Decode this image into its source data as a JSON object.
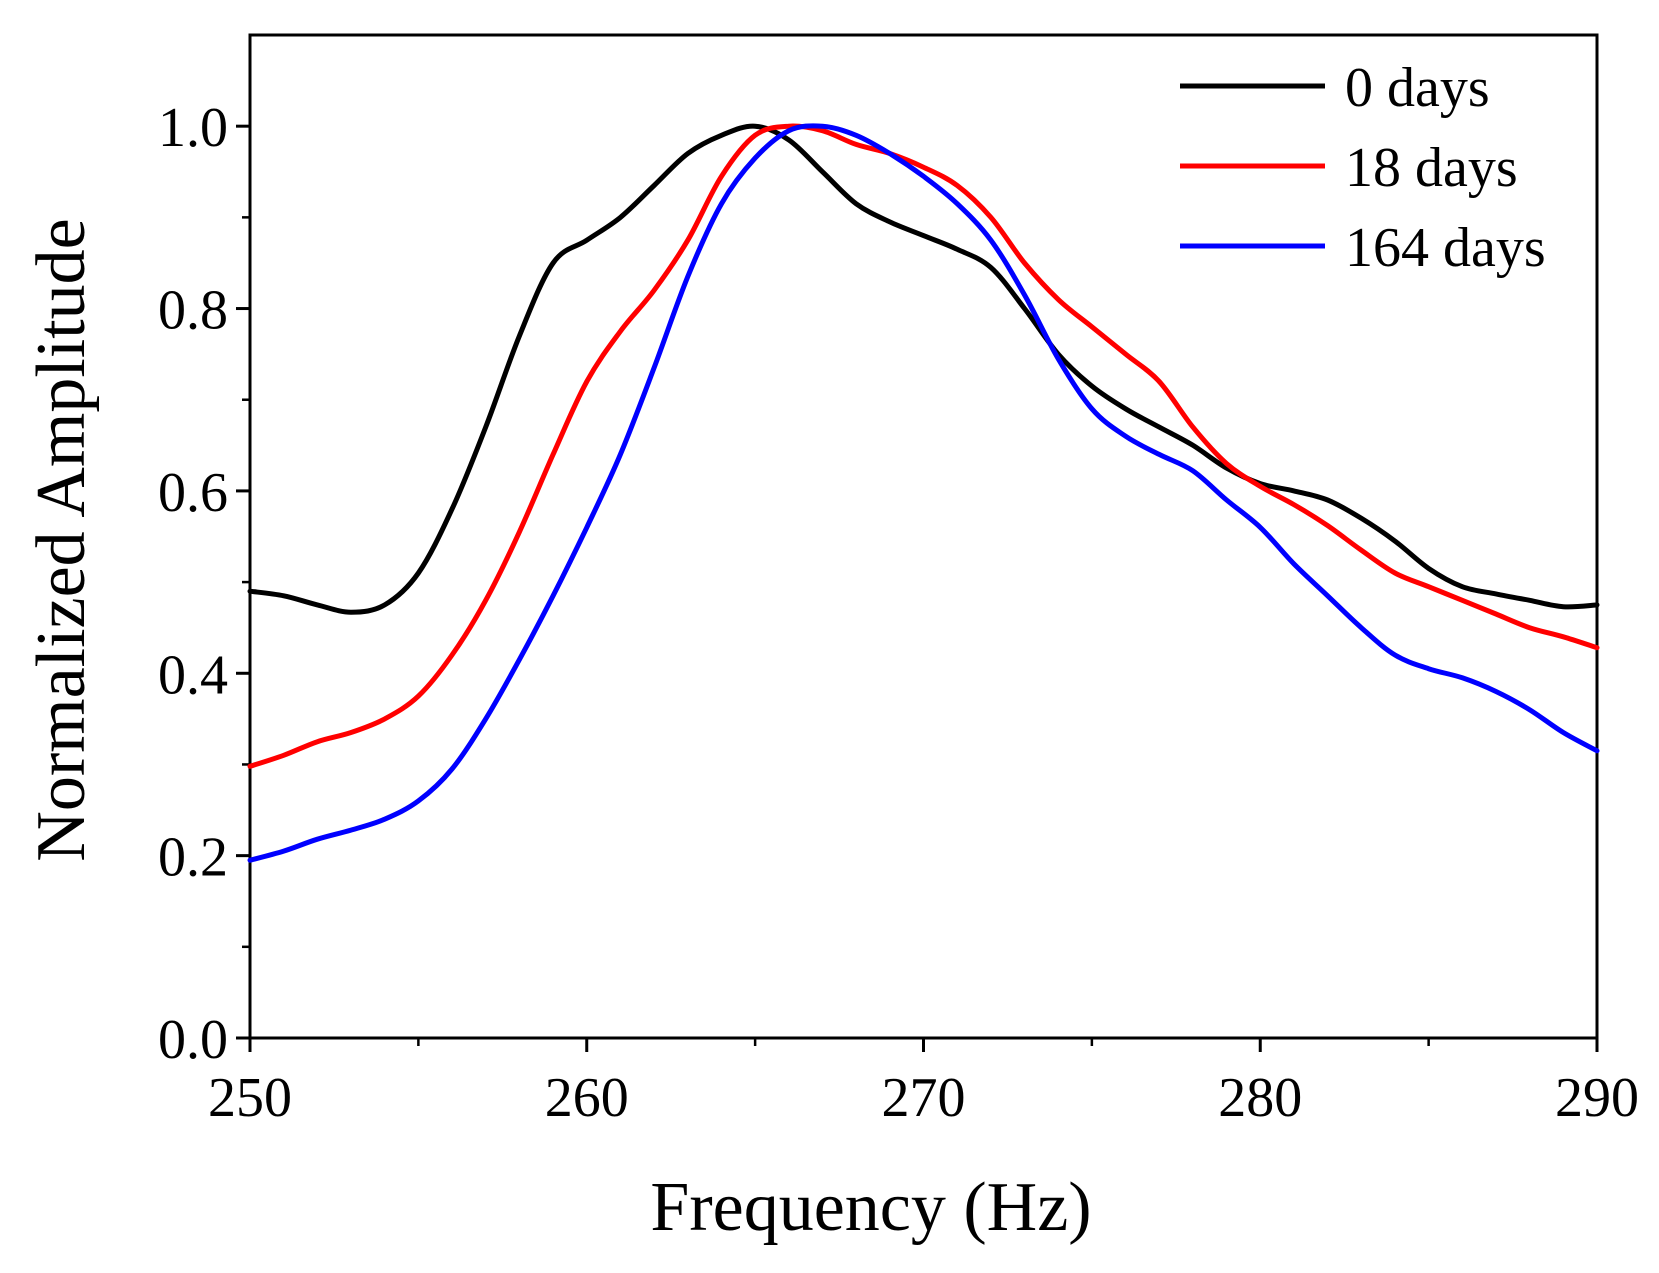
{
  "chart_data": {
    "type": "line",
    "title": "",
    "xlabel": "Frequency (Hz)",
    "ylabel": "Normalized Amplitude",
    "xlim": [
      250,
      290
    ],
    "ylim": [
      0.0,
      1.1
    ],
    "x_ticks": [
      250,
      260,
      270,
      280,
      290
    ],
    "x_tick_labels": [
      "250",
      "260",
      "270",
      "280",
      "290"
    ],
    "y_ticks": [
      0.0,
      0.2,
      0.4,
      0.6,
      0.8,
      1.0
    ],
    "y_tick_labels": [
      "0.0",
      "0.2",
      "0.4",
      "0.6",
      "0.8",
      "1.0"
    ],
    "grid": false,
    "legend_position": "top-right",
    "series": [
      {
        "name": "0 days",
        "color": "#000000",
        "points": [
          [
            250,
            0.49
          ],
          [
            251,
            0.485
          ],
          [
            252,
            0.475
          ],
          [
            253,
            0.467
          ],
          [
            254,
            0.475
          ],
          [
            255,
            0.51
          ],
          [
            256,
            0.58
          ],
          [
            257,
            0.67
          ],
          [
            258,
            0.77
          ],
          [
            259,
            0.85
          ],
          [
            260,
            0.875
          ],
          [
            261,
            0.9
          ],
          [
            262,
            0.935
          ],
          [
            263,
            0.97
          ],
          [
            264,
            0.99
          ],
          [
            265,
            1.0
          ],
          [
            266,
            0.985
          ],
          [
            267,
            0.95
          ],
          [
            268,
            0.915
          ],
          [
            269,
            0.895
          ],
          [
            270,
            0.88
          ],
          [
            271,
            0.865
          ],
          [
            272,
            0.845
          ],
          [
            273,
            0.8
          ],
          [
            274,
            0.75
          ],
          [
            275,
            0.715
          ],
          [
            276,
            0.69
          ],
          [
            277,
            0.67
          ],
          [
            278,
            0.65
          ],
          [
            279,
            0.625
          ],
          [
            280,
            0.608
          ],
          [
            281,
            0.6
          ],
          [
            282,
            0.59
          ],
          [
            283,
            0.57
          ],
          [
            284,
            0.545
          ],
          [
            285,
            0.515
          ],
          [
            286,
            0.495
          ],
          [
            287,
            0.487
          ],
          [
            288,
            0.48
          ],
          [
            289,
            0.473
          ],
          [
            290,
            0.475
          ]
        ]
      },
      {
        "name": "18 days",
        "color": "#ff0000",
        "points": [
          [
            250,
            0.298
          ],
          [
            251,
            0.31
          ],
          [
            252,
            0.325
          ],
          [
            253,
            0.335
          ],
          [
            254,
            0.35
          ],
          [
            255,
            0.375
          ],
          [
            256,
            0.42
          ],
          [
            257,
            0.48
          ],
          [
            258,
            0.555
          ],
          [
            259,
            0.64
          ],
          [
            260,
            0.72
          ],
          [
            261,
            0.775
          ],
          [
            262,
            0.82
          ],
          [
            263,
            0.875
          ],
          [
            264,
            0.945
          ],
          [
            265,
            0.99
          ],
          [
            266,
            1.0
          ],
          [
            267,
            0.995
          ],
          [
            268,
            0.98
          ],
          [
            269,
            0.97
          ],
          [
            270,
            0.955
          ],
          [
            271,
            0.935
          ],
          [
            272,
            0.9
          ],
          [
            273,
            0.85
          ],
          [
            274,
            0.81
          ],
          [
            275,
            0.78
          ],
          [
            276,
            0.75
          ],
          [
            277,
            0.72
          ],
          [
            278,
            0.67
          ],
          [
            279,
            0.63
          ],
          [
            280,
            0.605
          ],
          [
            281,
            0.585
          ],
          [
            282,
            0.562
          ],
          [
            283,
            0.535
          ],
          [
            284,
            0.51
          ],
          [
            285,
            0.495
          ],
          [
            286,
            0.48
          ],
          [
            287,
            0.465
          ],
          [
            288,
            0.45
          ],
          [
            289,
            0.44
          ],
          [
            290,
            0.428
          ]
        ]
      },
      {
        "name": "164 days",
        "color": "#0000ff",
        "points": [
          [
            250,
            0.195
          ],
          [
            251,
            0.205
          ],
          [
            252,
            0.218
          ],
          [
            253,
            0.228
          ],
          [
            254,
            0.24
          ],
          [
            255,
            0.26
          ],
          [
            256,
            0.295
          ],
          [
            257,
            0.35
          ],
          [
            258,
            0.415
          ],
          [
            259,
            0.485
          ],
          [
            260,
            0.56
          ],
          [
            261,
            0.64
          ],
          [
            262,
            0.735
          ],
          [
            263,
            0.835
          ],
          [
            264,
            0.915
          ],
          [
            265,
            0.965
          ],
          [
            266,
            0.995
          ],
          [
            267,
            1.0
          ],
          [
            268,
            0.99
          ],
          [
            269,
            0.97
          ],
          [
            270,
            0.945
          ],
          [
            271,
            0.915
          ],
          [
            272,
            0.875
          ],
          [
            273,
            0.815
          ],
          [
            274,
            0.745
          ],
          [
            275,
            0.69
          ],
          [
            276,
            0.66
          ],
          [
            277,
            0.64
          ],
          [
            278,
            0.622
          ],
          [
            279,
            0.59
          ],
          [
            280,
            0.56
          ],
          [
            281,
            0.52
          ],
          [
            282,
            0.485
          ],
          [
            283,
            0.45
          ],
          [
            284,
            0.42
          ],
          [
            285,
            0.405
          ],
          [
            286,
            0.395
          ],
          [
            287,
            0.38
          ],
          [
            288,
            0.36
          ],
          [
            289,
            0.335
          ],
          [
            290,
            0.315
          ]
        ]
      }
    ]
  }
}
